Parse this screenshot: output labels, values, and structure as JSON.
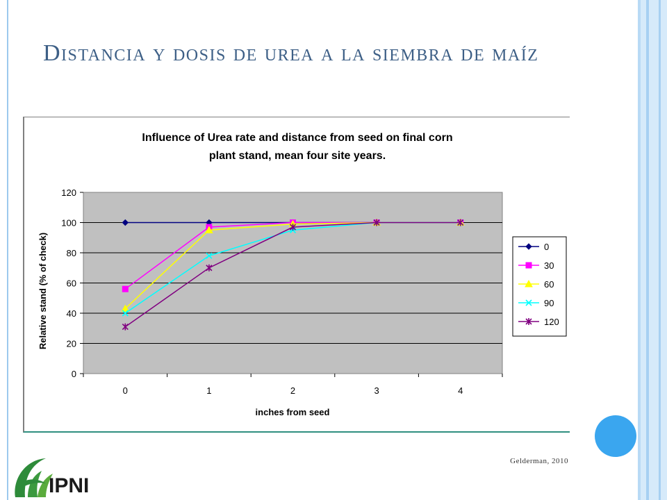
{
  "slide": {
    "title": "Distancia y dosis de urea a la siembra de maíz",
    "source": "Gelderman, 2010",
    "logo_text": "IPNI"
  },
  "colors": {
    "frame": "#9cc9ee",
    "circle": "#3aa6ef",
    "plot_bg": "#c0c0c0",
    "logo_green": "#2e8b3a"
  },
  "chart_data": {
    "type": "line",
    "title_line1": "Influence of Urea rate and distance from seed on final corn",
    "title_line2": "plant stand, mean four site years.",
    "xlabel": "inches from seed",
    "ylabel": "Relative stand (% of check)",
    "x": [
      0,
      1,
      2,
      3,
      4
    ],
    "ylim": [
      0,
      120
    ],
    "yticks": [
      0,
      20,
      40,
      60,
      80,
      100,
      120
    ],
    "grid": true,
    "legend_position": "right",
    "series": [
      {
        "name": "0",
        "color": "#000080",
        "marker": "diamond",
        "values": [
          100,
          100,
          100,
          100,
          100
        ]
      },
      {
        "name": "30",
        "color": "#ff00ff",
        "marker": "square",
        "values": [
          56,
          97,
          100,
          100,
          100
        ]
      },
      {
        "name": "60",
        "color": "#ffff00",
        "marker": "triangle",
        "values": [
          43,
          95,
          99,
          100,
          100
        ]
      },
      {
        "name": "90",
        "color": "#00ffff",
        "marker": "x",
        "values": [
          40,
          78,
          95,
          100,
          100
        ]
      },
      {
        "name": "120",
        "color": "#800080",
        "marker": "star",
        "values": [
          31,
          70,
          97,
          100,
          100
        ]
      }
    ]
  }
}
